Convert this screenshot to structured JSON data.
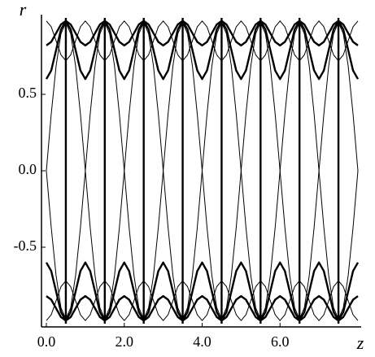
{
  "chart_data": {
    "type": "line",
    "x_label": "z",
    "y_label": "r",
    "xlim": [
      0,
      8
    ],
    "ylim": [
      -1,
      1
    ],
    "xticks": [
      {
        "value": 0,
        "label": "0.0"
      },
      {
        "value": 2,
        "label": "2.0"
      },
      {
        "value": 4,
        "label": "4.0"
      },
      {
        "value": 6,
        "label": "6.0"
      }
    ],
    "yticks": [
      {
        "value": -0.5,
        "label": "-0.5"
      },
      {
        "value": 0,
        "label": "0.0"
      },
      {
        "value": 0.5,
        "label": "0.5"
      }
    ],
    "vlines": [
      0.5,
      1.5,
      2.5,
      3.5,
      4.5,
      5.5,
      6.5,
      7.5
    ],
    "vline_width": 2.4,
    "x": [
      0,
      0.125,
      0.25,
      0.375,
      0.5,
      0.625,
      0.75,
      0.875,
      1,
      1.125,
      1.25,
      1.375,
      1.5,
      1.625,
      1.75,
      1.875,
      2,
      2.125,
      2.25,
      2.375,
      2.5,
      2.625,
      2.75,
      2.875,
      3,
      3.125,
      3.25,
      3.375,
      3.5,
      3.625,
      3.75,
      3.875,
      4,
      4.125,
      4.25,
      4.375,
      4.5,
      4.625,
      4.75,
      4.875,
      5,
      5.125,
      5.25,
      5.375,
      5.5,
      5.625,
      5.75,
      5.875,
      6,
      6.125,
      6.25,
      6.375,
      6.5,
      6.625,
      6.75,
      6.875,
      7,
      7.125,
      7.25,
      7.375,
      7.5,
      7.625,
      7.75,
      7.875,
      8
    ],
    "series": [
      {
        "color": "#000",
        "width": 1,
        "values": [
          0,
          0.371,
          0.686,
          0.896,
          0.97,
          0.896,
          0.686,
          0.371,
          0,
          -0.371,
          -0.686,
          -0.896,
          -0.97,
          -0.896,
          -0.686,
          -0.371,
          0,
          0.371,
          0.686,
          0.896,
          0.97,
          0.896,
          0.686,
          0.371,
          0,
          -0.371,
          -0.686,
          -0.896,
          -0.97,
          -0.896,
          -0.686,
          -0.371,
          0,
          0.371,
          0.686,
          0.896,
          0.97,
          0.896,
          0.686,
          0.371,
          0,
          -0.371,
          -0.686,
          -0.896,
          -0.97,
          -0.896,
          -0.686,
          -0.371,
          0,
          0.371,
          0.686,
          0.896,
          0.97,
          0.896,
          0.686,
          0.371,
          0,
          -0.371,
          -0.686,
          -0.896,
          -0.97,
          -0.896,
          -0.686,
          -0.371,
          0
        ]
      },
      {
        "color": "#000",
        "width": 1,
        "values": [
          0,
          -0.371,
          -0.686,
          -0.896,
          -0.97,
          -0.896,
          -0.686,
          -0.371,
          0,
          0.371,
          0.686,
          0.896,
          0.97,
          0.896,
          0.686,
          0.371,
          0,
          -0.371,
          -0.686,
          -0.896,
          -0.97,
          -0.896,
          -0.686,
          -0.371,
          0,
          0.371,
          0.686,
          0.896,
          0.97,
          0.896,
          0.686,
          0.371,
          0,
          -0.371,
          -0.686,
          -0.896,
          -0.97,
          -0.896,
          -0.686,
          -0.371,
          0,
          0.371,
          0.686,
          0.896,
          0.97,
          0.896,
          0.686,
          0.371,
          0,
          -0.371,
          -0.686,
          -0.896,
          -0.97,
          -0.896,
          -0.686,
          -0.371,
          0,
          0.371,
          0.686,
          0.896,
          0.97,
          0.896,
          0.686,
          0.371,
          0
        ]
      },
      {
        "color": "#000",
        "width": 1,
        "values": [
          0.98,
          0.942,
          0.85,
          0.758,
          0.72,
          0.758,
          0.85,
          0.942,
          0.98,
          0.942,
          0.85,
          0.758,
          0.72,
          0.758,
          0.85,
          0.942,
          0.98,
          0.942,
          0.85,
          0.758,
          0.72,
          0.758,
          0.85,
          0.942,
          0.98,
          0.942,
          0.85,
          0.758,
          0.72,
          0.758,
          0.85,
          0.942,
          0.98,
          0.942,
          0.85,
          0.758,
          0.72,
          0.758,
          0.85,
          0.942,
          0.98,
          0.942,
          0.85,
          0.758,
          0.72,
          0.758,
          0.85,
          0.942,
          0.98,
          0.942,
          0.85,
          0.758,
          0.72,
          0.758,
          0.85,
          0.942,
          0.98,
          0.942,
          0.85,
          0.758,
          0.72,
          0.758,
          0.85,
          0.942,
          0.98
        ]
      },
      {
        "color": "#000",
        "width": 1,
        "values": [
          -0.98,
          -0.942,
          -0.85,
          -0.758,
          -0.72,
          -0.758,
          -0.85,
          -0.942,
          -0.98,
          -0.942,
          -0.85,
          -0.758,
          -0.72,
          -0.758,
          -0.85,
          -0.942,
          -0.98,
          -0.942,
          -0.85,
          -0.758,
          -0.72,
          -0.758,
          -0.85,
          -0.942,
          -0.98,
          -0.942,
          -0.85,
          -0.758,
          -0.72,
          -0.758,
          -0.85,
          -0.942,
          -0.98,
          -0.942,
          -0.85,
          -0.758,
          -0.72,
          -0.758,
          -0.85,
          -0.942,
          -0.98,
          -0.942,
          -0.85,
          -0.758,
          -0.72,
          -0.758,
          -0.85,
          -0.942,
          -0.98,
          -0.942,
          -0.85,
          -0.758,
          -0.72,
          -0.758,
          -0.85,
          -0.942,
          -0.98,
          -0.942,
          -0.85,
          -0.758,
          -0.72,
          -0.758,
          -0.85,
          -0.942,
          -0.98
        ]
      },
      {
        "color": "#000",
        "width": 2.4,
        "values": [
          0.6,
          0.656,
          0.79,
          0.924,
          0.98,
          0.924,
          0.79,
          0.656,
          0.6,
          0.656,
          0.79,
          0.924,
          0.98,
          0.924,
          0.79,
          0.656,
          0.6,
          0.656,
          0.79,
          0.924,
          0.98,
          0.924,
          0.79,
          0.656,
          0.6,
          0.656,
          0.79,
          0.924,
          0.98,
          0.924,
          0.79,
          0.656,
          0.6,
          0.656,
          0.79,
          0.924,
          0.98,
          0.924,
          0.79,
          0.656,
          0.6,
          0.656,
          0.79,
          0.924,
          0.98,
          0.924,
          0.79,
          0.656,
          0.6,
          0.656,
          0.79,
          0.924,
          0.98,
          0.924,
          0.79,
          0.656,
          0.6,
          0.656,
          0.79,
          0.924,
          0.98,
          0.924,
          0.79,
          0.656,
          0.6
        ]
      },
      {
        "color": "#000",
        "width": 2.4,
        "values": [
          -0.6,
          -0.656,
          -0.79,
          -0.924,
          -0.98,
          -0.924,
          -0.79,
          -0.656,
          -0.6,
          -0.656,
          -0.79,
          -0.924,
          -0.98,
          -0.924,
          -0.79,
          -0.656,
          -0.6,
          -0.656,
          -0.79,
          -0.924,
          -0.98,
          -0.924,
          -0.79,
          -0.656,
          -0.6,
          -0.656,
          -0.79,
          -0.924,
          -0.98,
          -0.924,
          -0.79,
          -0.656,
          -0.6,
          -0.656,
          -0.79,
          -0.924,
          -0.98,
          -0.924,
          -0.79,
          -0.656,
          -0.6,
          -0.656,
          -0.79,
          -0.924,
          -0.98,
          -0.924,
          -0.79,
          -0.656,
          -0.6,
          -0.656,
          -0.79,
          -0.924,
          -0.98,
          -0.924,
          -0.79,
          -0.656,
          -0.6,
          -0.656,
          -0.79,
          -0.924,
          -0.98,
          -0.924,
          -0.79,
          -0.656,
          -0.6
        ]
      },
      {
        "color": "#000",
        "width": 2.4,
        "values": [
          0.82,
          0.843,
          0.9,
          0.957,
          0.98,
          0.957,
          0.9,
          0.843,
          0.82,
          0.843,
          0.9,
          0.957,
          0.98,
          0.957,
          0.9,
          0.843,
          0.82,
          0.843,
          0.9,
          0.957,
          0.98,
          0.957,
          0.9,
          0.843,
          0.82,
          0.843,
          0.9,
          0.957,
          0.98,
          0.957,
          0.9,
          0.843,
          0.82,
          0.843,
          0.9,
          0.957,
          0.98,
          0.957,
          0.9,
          0.843,
          0.82,
          0.843,
          0.9,
          0.957,
          0.98,
          0.957,
          0.9,
          0.843,
          0.82,
          0.843,
          0.9,
          0.957,
          0.98,
          0.957,
          0.9,
          0.843,
          0.82,
          0.843,
          0.9,
          0.957,
          0.98,
          0.957,
          0.9,
          0.843,
          0.82
        ]
      },
      {
        "color": "#000",
        "width": 2.4,
        "values": [
          -0.82,
          -0.843,
          -0.9,
          -0.957,
          -0.98,
          -0.957,
          -0.9,
          -0.843,
          -0.82,
          -0.843,
          -0.9,
          -0.957,
          -0.98,
          -0.957,
          -0.9,
          -0.843,
          -0.82,
          -0.843,
          -0.9,
          -0.957,
          -0.98,
          -0.957,
          -0.9,
          -0.843,
          -0.82,
          -0.843,
          -0.9,
          -0.957,
          -0.98,
          -0.957,
          -0.9,
          -0.843,
          -0.82,
          -0.843,
          -0.9,
          -0.957,
          -0.98,
          -0.957,
          -0.9,
          -0.843,
          -0.82,
          -0.843,
          -0.9,
          -0.957,
          -0.98,
          -0.957,
          -0.9,
          -0.843,
          -0.82,
          -0.843,
          -0.9,
          -0.957,
          -0.98,
          -0.957,
          -0.9,
          -0.843,
          -0.82,
          -0.843,
          -0.9,
          -0.957,
          -0.98,
          -0.957,
          -0.9,
          -0.843,
          -0.82
        ]
      }
    ]
  }
}
